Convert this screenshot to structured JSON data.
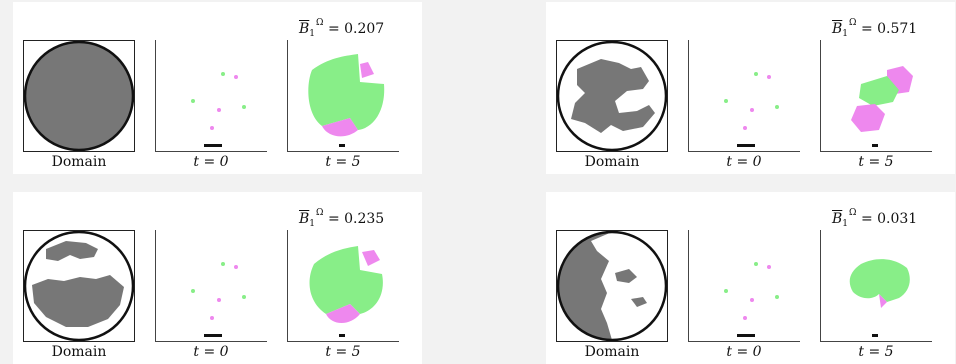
{
  "colors": {
    "background": "#f2f2f2",
    "domain_fill": "#777777",
    "green": "#88ee88",
    "magenta": "#ee88ee"
  },
  "labels": {
    "domain": "Domain",
    "t0": "t = 0",
    "t5": "t = 5"
  },
  "panels": [
    {
      "metric_symbol": "B",
      "metric_sub": "1",
      "metric_sup": "Ω",
      "metric_value": "= 0.207"
    },
    {
      "metric_symbol": "B",
      "metric_sub": "1",
      "metric_sup": "Ω",
      "metric_value": "= 0.571"
    },
    {
      "metric_symbol": "B",
      "metric_sub": "1",
      "metric_sup": "Ω",
      "metric_value": "= 0.235"
    },
    {
      "metric_symbol": "B",
      "metric_sub": "1",
      "metric_sup": "Ω",
      "metric_value": "= 0.031"
    }
  ]
}
